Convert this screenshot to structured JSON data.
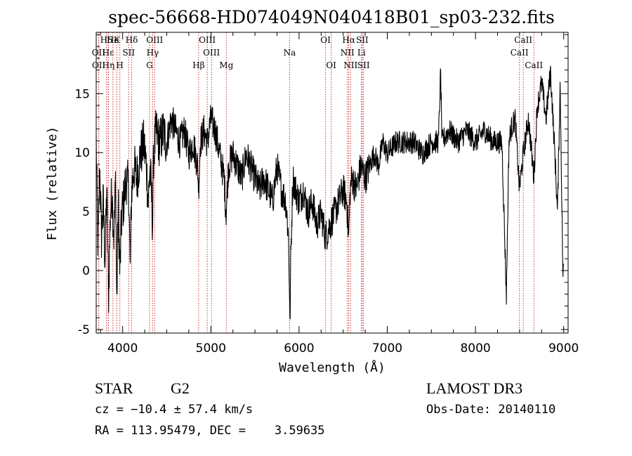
{
  "chart_data": {
    "type": "line",
    "title": "spec-56668-HD074049N040418B01_sp03-232.fits",
    "xlabel": "Wavelength (Å)",
    "ylabel": "Flux (relative)",
    "xlim": [
      3700,
      9050
    ],
    "ylim": [
      -5.3,
      20.2
    ],
    "x_ticks": [
      4000,
      5000,
      6000,
      7000,
      8000,
      9000
    ],
    "y_ticks": [
      -5,
      0,
      5,
      10,
      15
    ],
    "line_color": "#000000",
    "reference_line_color": "#cc3333",
    "spectrum_anchors": {
      "x": [
        3700,
        3720,
        3740,
        3760,
        3780,
        3800,
        3820,
        3840,
        3860,
        3880,
        3900,
        3920,
        3933,
        3950,
        3968,
        3990,
        4010,
        4040,
        4070,
        4085,
        4101,
        4130,
        4160,
        4200,
        4240,
        4270,
        4290,
        4310,
        4330,
        4340,
        4350,
        4380,
        4420,
        4460,
        4500,
        4550,
        4600,
        4650,
        4700,
        4750,
        4800,
        4850,
        4861,
        4880,
        4920,
        4960,
        5000,
        5050,
        5100,
        5150,
        5172,
        5200,
        5250,
        5300,
        5350,
        5400,
        5450,
        5500,
        5550,
        5600,
        5650,
        5700,
        5750,
        5800,
        5850,
        5880,
        5890,
        5896,
        5905,
        5930,
        5960,
        6000,
        6050,
        6100,
        6150,
        6200,
        6250,
        6300,
        6350,
        6400,
        6450,
        6500,
        6540,
        6563,
        6580,
        6600,
        6650,
        6700,
        6750,
        6800,
        6850,
        6900,
        6950,
        7000,
        7100,
        7200,
        7300,
        7400,
        7500,
        7580,
        7605,
        7620,
        7700,
        7800,
        7900,
        8000,
        8100,
        8200,
        8300,
        8350,
        8380,
        8400,
        8450,
        8498,
        8542,
        8600,
        8662,
        8700,
        8750,
        8800,
        8850,
        8900,
        8930,
        8960,
        8990,
        9000
      ],
      "y": [
        11,
        2,
        9,
        3,
        6,
        1,
        7,
        -2,
        5,
        7,
        3,
        8,
        -3,
        6,
        0,
        5,
        6,
        8,
        7,
        0,
        7,
        9,
        8,
        10,
        11,
        9,
        6,
        9,
        6,
        4,
        10,
        12,
        11,
        12,
        11,
        13,
        12,
        11,
        12,
        10,
        11,
        9,
        7,
        11,
        12,
        11,
        13,
        12,
        10,
        8,
        5,
        9,
        10,
        9,
        8,
        10,
        9,
        8,
        7,
        8,
        7,
        6,
        9,
        7,
        6,
        3,
        -1,
        -5,
        1,
        8,
        7,
        6,
        7,
        5,
        6,
        4,
        5,
        3,
        4,
        5,
        6,
        7,
        6,
        3,
        7,
        8,
        7,
        9,
        8,
        9,
        10,
        9,
        11,
        10,
        11,
        11,
        11,
        10,
        11,
        11,
        17,
        11,
        12,
        11,
        12,
        11,
        12,
        11,
        11,
        -2,
        11,
        12,
        13,
        7,
        10,
        13,
        8,
        14,
        16,
        13,
        17,
        10,
        5,
        16,
        0,
        0
      ]
    },
    "line_labels": [
      {
        "label": "Hδ",
        "x": 3815,
        "row": 1
      },
      {
        "label": "OII",
        "x": 3727,
        "row": 2
      },
      {
        "label": "OII",
        "x": 3729,
        "row": 3
      },
      {
        "label": "Hε",
        "x": 3835,
        "row": 2
      },
      {
        "label": "Hη",
        "x": 3838,
        "row": 3
      },
      {
        "label": "He",
        "x": 3889,
        "row": 1
      },
      {
        "label": "K",
        "x": 3934,
        "row": 1
      },
      {
        "label": "SII",
        "x": 4068,
        "row": 2
      },
      {
        "label": "H",
        "x": 3968,
        "row": 3
      },
      {
        "label": "Hδ",
        "x": 4102,
        "row": 1
      },
      {
        "label": "OIII",
        "x": 4363,
        "row": 1
      },
      {
        "label": "Hγ",
        "x": 4340,
        "row": 2
      },
      {
        "label": "G",
        "x": 4304,
        "row": 3
      },
      {
        "label": "OIII",
        "x": 4959,
        "row": 1
      },
      {
        "label": "OIII",
        "x": 5007,
        "row": 2
      },
      {
        "label": "Hβ",
        "x": 4861,
        "row": 3
      },
      {
        "label": "Mg",
        "x": 5175,
        "row": 3
      },
      {
        "label": "Na",
        "x": 5893,
        "row": 2
      },
      {
        "label": "OI",
        "x": 6300,
        "row": 1
      },
      {
        "label": "OI",
        "x": 6364,
        "row": 3
      },
      {
        "label": "Hα",
        "x": 6563,
        "row": 1
      },
      {
        "label": "NII",
        "x": 6548,
        "row": 2
      },
      {
        "label": "NII",
        "x": 6584,
        "row": 3
      },
      {
        "label": "SII",
        "x": 6716,
        "row": 1
      },
      {
        "label": "Li",
        "x": 6708,
        "row": 2
      },
      {
        "label": "SII",
        "x": 6731,
        "row": 3
      },
      {
        "label": "CaII",
        "x": 8542,
        "row": 1
      },
      {
        "label": "CaII",
        "x": 8498,
        "row": 2
      },
      {
        "label": "CaII",
        "x": 8662,
        "row": 3
      }
    ],
    "reference_lines_x": [
      3727,
      3729,
      3815,
      3835,
      3838,
      3889,
      3934,
      3968,
      4068,
      4102,
      4304,
      4340,
      4363,
      4861,
      4959,
      5007,
      5175,
      5893,
      6300,
      6364,
      6548,
      6563,
      6584,
      6708,
      6716,
      6731,
      8498,
      8542,
      8662
    ]
  },
  "footer": {
    "object_class": "STAR",
    "subclass": "G2",
    "survey": "LAMOST DR3",
    "redshift": "cz = −10.4 ± 57.4 km/s",
    "obs_date": "Obs-Date: 20140110",
    "coords": "RA = 113.95479, DEC =    3.59635"
  }
}
